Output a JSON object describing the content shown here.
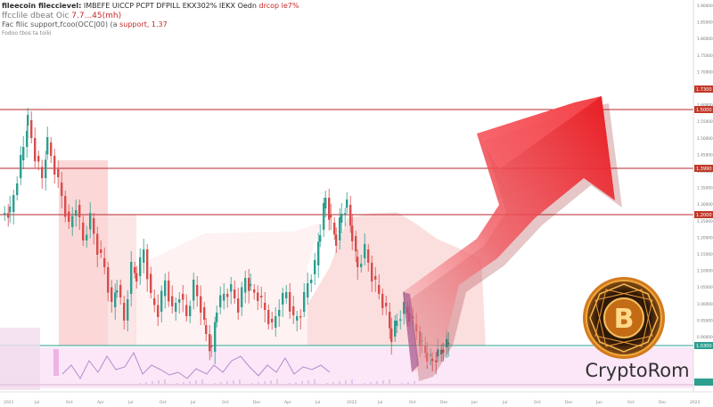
{
  "header": {
    "ticker": "fileecoin fileccievel:",
    "info": "IMBEFE UICCP PCPT DFPILL EKX302% IEKX Oedn",
    "change": "drcop le7%",
    "line2_label": "ffcclile dbeat Oic",
    "line2_value": "7.7...45(mh)",
    "line3_label": "Fac filic support,fcoo(OCC|00) (a",
    "line3_value": "support, 1.37",
    "line4_label": "Fodoo tbos ta toiki"
  },
  "price_axis": {
    "ticks": [
      "1.9000000",
      "1.8500000",
      "1.8000000",
      "1.7500000",
      "1.7000000",
      "1.6500000",
      "1.6000000",
      "1.5500000",
      "1.5000000",
      "1.4500000",
      "1.4000000",
      "1.3500000",
      "1.3000000",
      "1.2500000",
      "1.2000000",
      "1.1500000",
      "1.1000000",
      "1.0500000",
      "1.0000000",
      "0.9500000",
      "0.9000000"
    ],
    "tags": [
      "1.7300",
      "1.5000",
      "1.3990",
      "1.2000",
      "1.0300"
    ]
  },
  "time_axis": {
    "labels": [
      "2021",
      "Jul",
      "Oct",
      "Apr",
      "Jul",
      "Oct",
      "Jul",
      "Oct",
      "Dec",
      "Apr",
      "Jul",
      "2022",
      "Jul",
      "Oct",
      "Dec",
      "Jan",
      "Jul",
      "Oct",
      "Dec",
      "Jun",
      "Oct",
      "Dec",
      "2023"
    ]
  },
  "logo": {
    "symbol": "B",
    "text": "CryptoRom"
  },
  "colors": {
    "up": "#2e9e8f",
    "down": "#d84c4c",
    "resistance": "#c0392b",
    "arrow": "#e8242b",
    "zone": "#f8c5c5",
    "oscillator_bg": "#fbe7f7",
    "coin": "#f2a93b"
  }
}
